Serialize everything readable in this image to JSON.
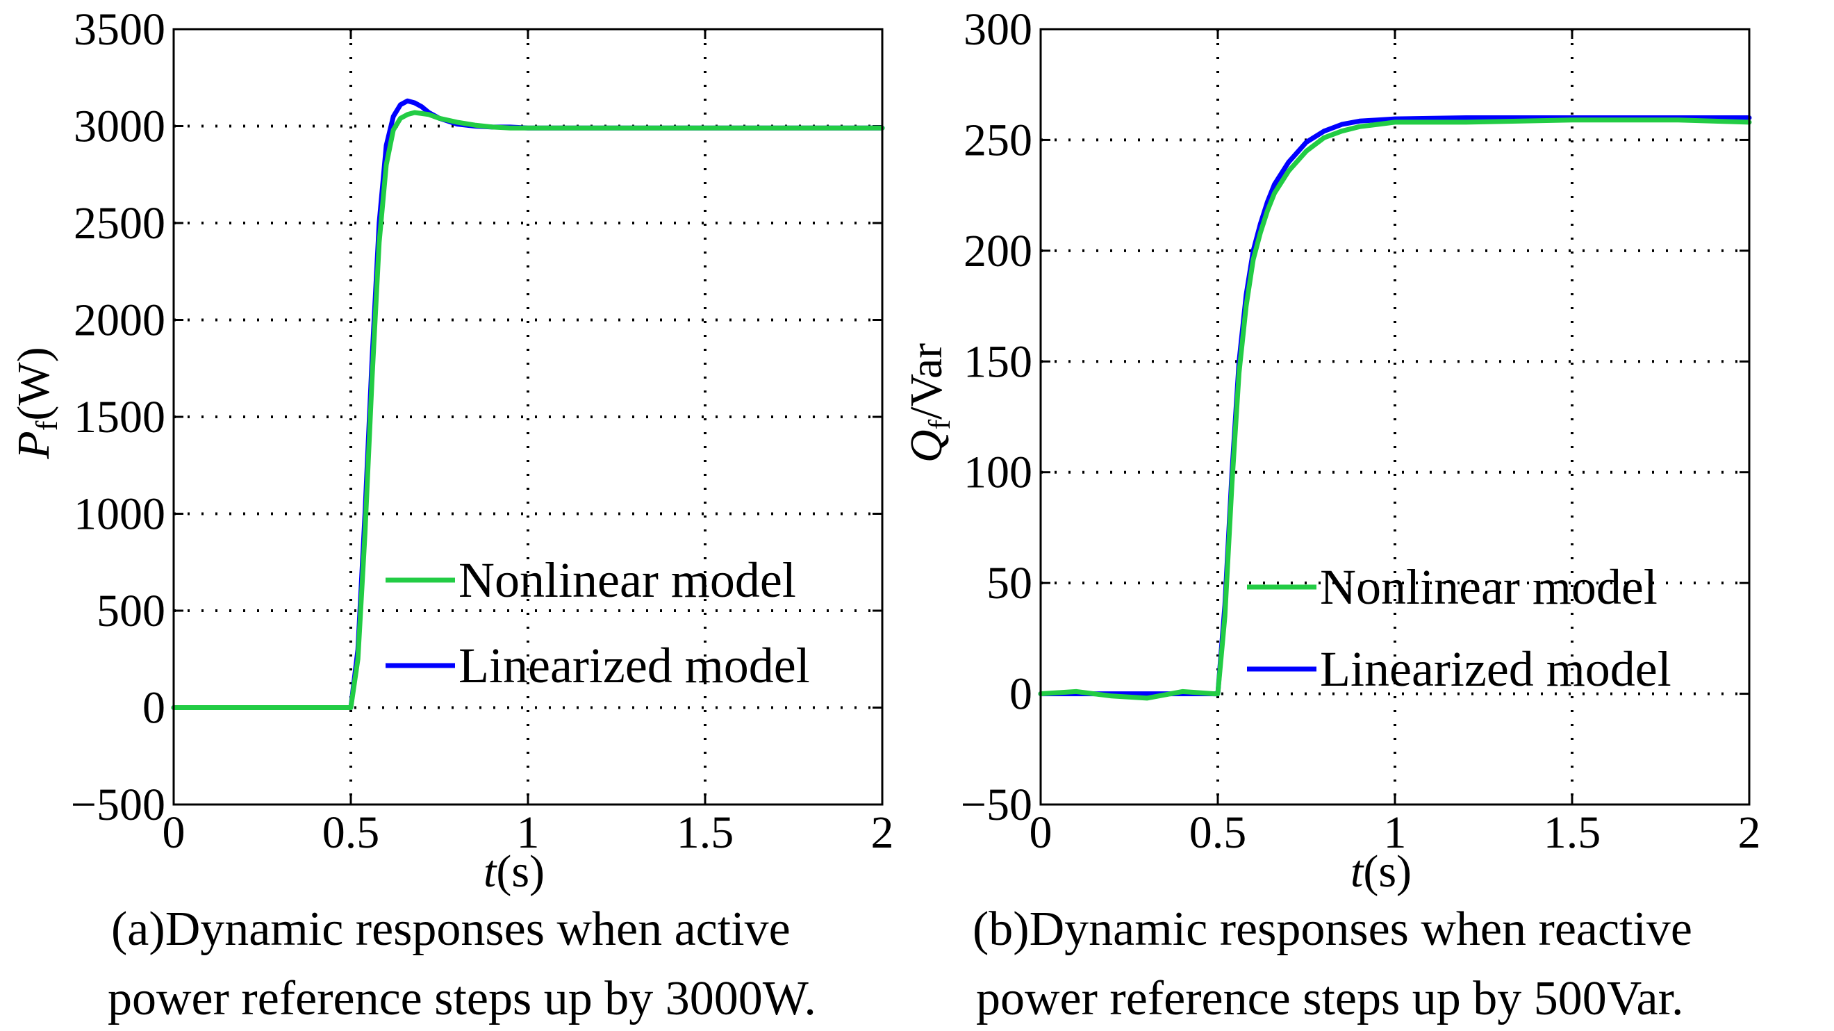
{
  "chart_data": [
    {
      "type": "line",
      "id": "a",
      "xlabel_italic": "t",
      "xlabel_rest": "(s)",
      "ylabel_italic": "P",
      "ylabel_sub": "f",
      "ylabel_rest": "(W)",
      "xlim": [
        0,
        2
      ],
      "ylim": [
        -500,
        3500
      ],
      "xticks": [
        0,
        0.5,
        1,
        1.5,
        2
      ],
      "xtick_labels": [
        "0",
        "0.5",
        "1",
        "1.5",
        "2"
      ],
      "yticks": [
        -500,
        0,
        500,
        1000,
        1500,
        2000,
        2500,
        3000,
        3500
      ],
      "ytick_labels": [
        "−500",
        "0",
        "500",
        "1000",
        "1500",
        "2000",
        "2500",
        "3000",
        "3500"
      ],
      "grid": true,
      "legend_position": "lower-right",
      "caption": [
        "(a)Dynamic responses when active",
        "power reference steps up by 3000W."
      ],
      "series": [
        {
          "name": "Linearized model",
          "color": "#0000ff",
          "x": [
            0,
            0.49,
            0.5,
            0.52,
            0.54,
            0.56,
            0.58,
            0.6,
            0.62,
            0.64,
            0.66,
            0.68,
            0.7,
            0.72,
            0.75,
            0.8,
            0.85,
            0.9,
            0.95,
            1.0,
            1.2,
            1.5,
            1.8,
            2.0
          ],
          "y": [
            0,
            0,
            0,
            300,
            1000,
            1800,
            2500,
            2900,
            3050,
            3110,
            3130,
            3120,
            3100,
            3070,
            3040,
            3010,
            3000,
            2995,
            2995,
            2990,
            2990,
            2990,
            2990,
            2990
          ]
        },
        {
          "name": "Nonlinear model",
          "color": "#22cc44",
          "x": [
            0,
            0.49,
            0.5,
            0.52,
            0.54,
            0.56,
            0.58,
            0.6,
            0.62,
            0.64,
            0.66,
            0.68,
            0.7,
            0.72,
            0.75,
            0.8,
            0.85,
            0.9,
            0.95,
            1.0,
            1.2,
            1.5,
            1.8,
            2.0
          ],
          "y": [
            0,
            0,
            0,
            250,
            900,
            1700,
            2400,
            2800,
            2980,
            3040,
            3060,
            3070,
            3065,
            3060,
            3040,
            3020,
            3005,
            2995,
            2990,
            2990,
            2990,
            2990,
            2990,
            2990
          ]
        }
      ]
    },
    {
      "type": "line",
      "id": "b",
      "xlabel_italic": "t",
      "xlabel_rest": "(s)",
      "ylabel_italic": "Q",
      "ylabel_sub": "f",
      "ylabel_rest": "/Var",
      "xlim": [
        0,
        2
      ],
      "ylim": [
        -50,
        300
      ],
      "xticks": [
        0,
        0.5,
        1,
        1.5,
        2
      ],
      "xtick_labels": [
        "0",
        "0.5",
        "1",
        "1.5",
        "2"
      ],
      "yticks": [
        -50,
        0,
        50,
        100,
        150,
        200,
        250,
        300
      ],
      "ytick_labels": [
        "−50",
        "0",
        "50",
        "100",
        "150",
        "200",
        "250",
        "300"
      ],
      "grid": true,
      "legend_position": "lower-right",
      "caption": [
        "(b)Dynamic responses when reactive",
        "power reference steps up by 500Var."
      ],
      "series": [
        {
          "name": "Linearized model",
          "color": "#0000ff",
          "x": [
            0,
            0.49,
            0.5,
            0.52,
            0.54,
            0.56,
            0.58,
            0.6,
            0.62,
            0.64,
            0.66,
            0.7,
            0.75,
            0.8,
            0.85,
            0.9,
            0.95,
            1.0,
            1.2,
            1.5,
            1.8,
            2.0
          ],
          "y": [
            0,
            0,
            0,
            40,
            100,
            150,
            180,
            200,
            212,
            222,
            230,
            240,
            249,
            254,
            257,
            258.5,
            259,
            259.5,
            260,
            260,
            260,
            260
          ]
        },
        {
          "name": "Nonlinear model",
          "color": "#22cc44",
          "x": [
            0,
            0.1,
            0.2,
            0.3,
            0.4,
            0.49,
            0.5,
            0.52,
            0.54,
            0.56,
            0.58,
            0.6,
            0.62,
            0.64,
            0.66,
            0.7,
            0.75,
            0.8,
            0.85,
            0.9,
            0.95,
            1.0,
            1.2,
            1.5,
            1.8,
            2.0
          ],
          "y": [
            0,
            1,
            -1,
            -2,
            1,
            0,
            0,
            35,
            95,
            145,
            175,
            196,
            208,
            218,
            226,
            236,
            245,
            251,
            254,
            256,
            257,
            258,
            258,
            259,
            259,
            258
          ]
        }
      ]
    }
  ]
}
